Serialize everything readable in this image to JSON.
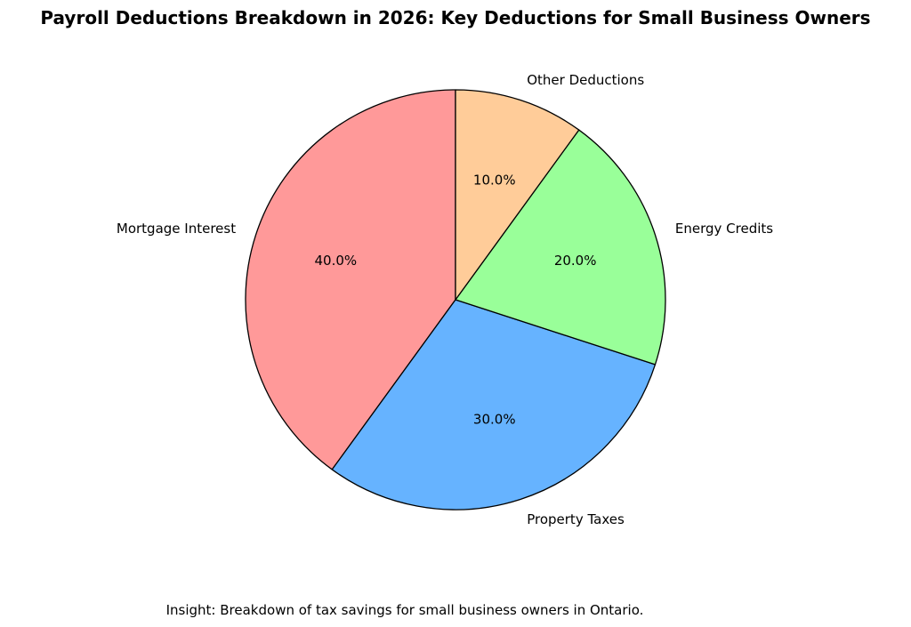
{
  "chart_data": {
    "type": "pie",
    "title": "Payroll Deductions Breakdown in 2026: Key Deductions for Small Business Owners",
    "slices": [
      {
        "label": "Mortgage Interest",
        "value": 40.0,
        "pct_label": "40.0%",
        "color": "#ff9999"
      },
      {
        "label": "Property Taxes",
        "value": 30.0,
        "pct_label": "30.0%",
        "color": "#66b3ff"
      },
      {
        "label": "Energy Credits",
        "value": 20.0,
        "pct_label": "20.0%",
        "color": "#99ff99"
      },
      {
        "label": "Other Deductions",
        "value": 10.0,
        "pct_label": "10.0%",
        "color": "#ffcc99"
      }
    ],
    "start_angle_deg": 90,
    "direction": "counterclockwise",
    "annotation": "Insight: Breakdown of tax savings for small business owners in Ontario."
  }
}
